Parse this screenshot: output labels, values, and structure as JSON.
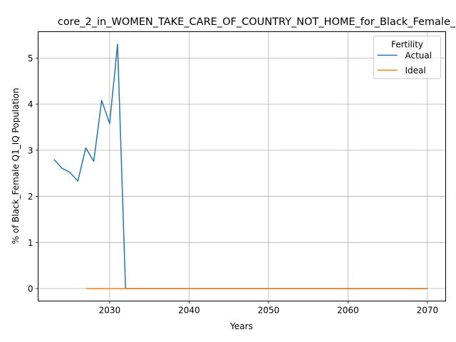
{
  "chart_data": {
    "type": "line",
    "title": "core_2_in_WOMEN_TAKE_CARE_OF_COUNTRY_NOT_HOME_for_Black_Female_",
    "xlabel": "Years",
    "ylabel": "% of Black_Female Q1_IQ Population",
    "xlim": [
      2021,
      2072.3
    ],
    "ylim": [
      -0.27,
      5.57
    ],
    "xticks": [
      2030,
      2040,
      2050,
      2060,
      2070
    ],
    "yticks": [
      0,
      1,
      2,
      3,
      4,
      5
    ],
    "grid": true,
    "legend": {
      "title": "Fertility",
      "placement": "top-right"
    },
    "series": [
      {
        "name": "Actual",
        "color": "#1f77b4",
        "x": [
          2023,
          2024,
          2025,
          2026,
          2027,
          2028,
          2029,
          2030,
          2031,
          2032,
          2070
        ],
        "y": [
          2.8,
          2.61,
          2.52,
          2.33,
          3.05,
          2.76,
          4.08,
          3.58,
          5.3,
          0.0,
          0.0
        ]
      },
      {
        "name": "Ideal",
        "color": "#ff7f0e",
        "x": [
          2027,
          2070
        ],
        "y": [
          0.0,
          0.0
        ]
      }
    ]
  }
}
